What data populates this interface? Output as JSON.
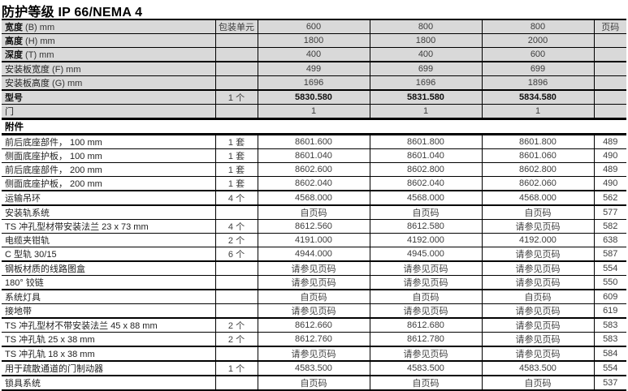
{
  "title": "防护等级 IP 66/NEMA 4",
  "columns": {
    "packaging_unit": "包装单元",
    "page": "页码"
  },
  "spec_section": {
    "rows": [
      {
        "label": "宽度",
        "suffix": " (B) mm",
        "label_bold": true,
        "packaging": "",
        "values": [
          "600",
          "800",
          "800"
        ],
        "values_bold": false,
        "thick": false
      },
      {
        "label": "高度",
        "suffix": " (H) mm",
        "label_bold": true,
        "packaging": "",
        "values": [
          "1800",
          "1800",
          "2000"
        ],
        "values_bold": false,
        "thick": false
      },
      {
        "label": "深度",
        "suffix": " (T) mm",
        "label_bold": true,
        "packaging": "",
        "values": [
          "400",
          "400",
          "600"
        ],
        "values_bold": false,
        "thick": true
      },
      {
        "label": "安装板宽度",
        "suffix": " (F) mm",
        "label_bold": false,
        "packaging": "",
        "values": [
          "499",
          "699",
          "699"
        ],
        "values_bold": false,
        "thick": false
      },
      {
        "label": "安装板高度",
        "suffix": " (G) mm",
        "label_bold": false,
        "packaging": "",
        "values": [
          "1696",
          "1696",
          "1896"
        ],
        "values_bold": false,
        "thick": true
      },
      {
        "label": "型号",
        "suffix": "",
        "label_bold": true,
        "packaging": "1 个",
        "values": [
          "5830.580",
          "5831.580",
          "5834.580"
        ],
        "values_bold": true,
        "thick": false
      },
      {
        "label": "门",
        "suffix": "",
        "label_bold": false,
        "packaging": "",
        "values": [
          "1",
          "1",
          "1"
        ],
        "values_bold": false,
        "thick": false
      }
    ]
  },
  "accessories_section": {
    "header": "附件",
    "rows": [
      {
        "label": "前后底座部件， 100 mm",
        "packaging": "1 套",
        "values": [
          "8601.600",
          "8601.800",
          "8601.800"
        ],
        "page": "489",
        "thick": false
      },
      {
        "label": "侧面底座护板， 100 mm",
        "packaging": "1 套",
        "values": [
          "8601.040",
          "8601.040",
          "8601.060"
        ],
        "page": "490",
        "thick": false
      },
      {
        "label": "前后底座部件， 200 mm",
        "packaging": "1 套",
        "values": [
          "8602.600",
          "8602.800",
          "8602.800"
        ],
        "page": "489",
        "thick": false
      },
      {
        "label": "侧面底座护板， 200 mm",
        "packaging": "1 套",
        "values": [
          "8602.040",
          "8602.040",
          "8602.060"
        ],
        "page": "490",
        "thick": true
      },
      {
        "label": "运输吊环",
        "packaging": "4 个",
        "values": [
          "4568.000",
          "4568.000",
          "4568.000"
        ],
        "page": "562",
        "thick": true
      },
      {
        "label": "安装轨系统",
        "packaging": "",
        "values": [
          "自页码",
          "自页码",
          "自页码"
        ],
        "page": "577",
        "thick": false
      },
      {
        "label": "TS 冲孔型材带安装法兰 23 x 73 mm",
        "packaging": "4 个",
        "values": [
          "8612.560",
          "8612.580",
          "请参见页码"
        ],
        "page": "582",
        "thick": false
      },
      {
        "label": "电缆夹钳轨",
        "packaging": "2 个",
        "values": [
          "4191.000",
          "4192.000",
          "4192.000"
        ],
        "page": "638",
        "thick": false
      },
      {
        "label": "C 型轨 30/15",
        "packaging": "6 个",
        "values": [
          "4944.000",
          "4945.000",
          "请参见页码"
        ],
        "page": "587",
        "thick": true
      },
      {
        "label": "钢板材质的线路图盒",
        "packaging": "",
        "values": [
          "请参见页码",
          "请参见页码",
          "请参见页码"
        ],
        "page": "554",
        "thick": false
      },
      {
        "label": "180° 铰链",
        "packaging": "",
        "values": [
          "请参见页码",
          "请参见页码",
          "请参见页码"
        ],
        "page": "550",
        "thick": true
      },
      {
        "label": "系统灯具",
        "packaging": "",
        "values": [
          "自页码",
          "自页码",
          "自页码"
        ],
        "page": "609",
        "thick": false
      },
      {
        "label": "接地带",
        "packaging": "",
        "values": [
          "请参见页码",
          "请参见页码",
          "请参见页码"
        ],
        "page": "619",
        "thick": true
      },
      {
        "label": "TS 冲孔型材不带安装法兰 45 x 88 mm",
        "packaging": "2 个",
        "values": [
          "8612.660",
          "8612.680",
          "请参见页码"
        ],
        "page": "583",
        "thick": false
      },
      {
        "label": "TS 冲孔轨 25 x 38 mm",
        "packaging": "2 个",
        "values": [
          "8612.760",
          "8612.780",
          "请参见页码"
        ],
        "page": "583",
        "thick": true
      },
      {
        "label": "TS 冲孔轨 18 x 38 mm",
        "packaging": "",
        "values": [
          "请参见页码",
          "请参见页码",
          "请参见页码"
        ],
        "page": "584",
        "thick": true
      },
      {
        "label": "用于疏散通道的门制动器",
        "packaging": "1 个",
        "values": [
          "4583.500",
          "4583.500",
          "4583.500"
        ],
        "page": "554",
        "thick": true
      },
      {
        "label": "锁具系统",
        "packaging": "",
        "values": [
          "自页码",
          "自页码",
          "自页码"
        ],
        "page": "537",
        "thick": false
      }
    ]
  }
}
